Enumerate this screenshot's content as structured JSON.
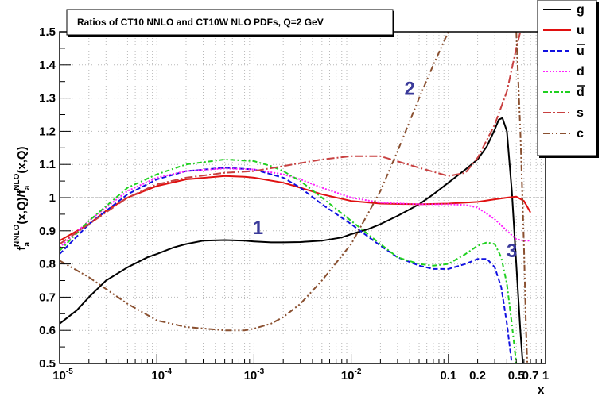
{
  "chart_data": {
    "type": "line",
    "title": "Ratios of CT10 NNLO and CT10W NLO PDFs, Q=2 GeV",
    "xlabel": "x",
    "ylabel_parts": {
      "f": "f",
      "a1": "a",
      "nnlo": "NNLO",
      "mid": "(x,Q)/f",
      "a2": "a",
      "nlo": "NLO",
      "end": "(x,Q)"
    },
    "xscale": "log",
    "xlim": [
      1e-05,
      1
    ],
    "ylim": [
      0.5,
      1.5
    ],
    "grid": true,
    "legend_position": "top-right",
    "x_ticks": [
      {
        "value": 1e-05,
        "base": "10",
        "exp": "-5"
      },
      {
        "value": 0.0001,
        "base": "10",
        "exp": "-4"
      },
      {
        "value": 0.001,
        "base": "10",
        "exp": "-3"
      },
      {
        "value": 0.01,
        "base": "10",
        "exp": "-2"
      },
      {
        "value": 0.1,
        "base": "0.1",
        "exp": ""
      },
      {
        "value": 0.2,
        "base": "0.2",
        "exp": ""
      },
      {
        "value": 0.5,
        "base": "0.5",
        "exp": ""
      },
      {
        "value": 0.7,
        "base": "0.7",
        "exp": ""
      },
      {
        "value": 1,
        "base": "1",
        "exp": ""
      }
    ],
    "y_ticks": [
      "0.5",
      "0.6",
      "0.7",
      "0.8",
      "0.9",
      "1",
      "1.1",
      "1.2",
      "1.3",
      "1.4",
      "1.5"
    ],
    "reference_line": 1,
    "annotations": [
      {
        "text": "1",
        "x": 0.0011,
        "y": 0.89,
        "color": "#3a3a9a"
      },
      {
        "text": "2",
        "x": 0.04,
        "y": 1.31,
        "color": "#3a3a9a"
      },
      {
        "text": "3",
        "x": 0.45,
        "y": 0.82,
        "color": "#3a3a9a"
      }
    ],
    "series": [
      {
        "name": "g",
        "color": "#000000",
        "dash": "",
        "x": [
          1e-05,
          1.5e-05,
          2e-05,
          3e-05,
          5e-05,
          8e-05,
          0.0001,
          0.00015,
          0.0002,
          0.0003,
          0.0005,
          0.0008,
          0.001,
          0.0015,
          0.002,
          0.003,
          0.005,
          0.008,
          0.01,
          0.015,
          0.02,
          0.03,
          0.05,
          0.07,
          0.1,
          0.15,
          0.2,
          0.25,
          0.3,
          0.33,
          0.36,
          0.4,
          0.45,
          0.5,
          0.55,
          0.6
        ],
        "y": [
          0.62,
          0.66,
          0.7,
          0.75,
          0.79,
          0.82,
          0.83,
          0.85,
          0.86,
          0.87,
          0.872,
          0.87,
          0.868,
          0.865,
          0.865,
          0.866,
          0.87,
          0.88,
          0.89,
          0.905,
          0.92,
          0.945,
          0.98,
          1.01,
          1.045,
          1.085,
          1.115,
          1.155,
          1.205,
          1.235,
          1.24,
          1.2,
          1.02,
          0.8,
          0.6,
          0.45
        ]
      },
      {
        "name": "u",
        "color": "#e01010",
        "dash": "",
        "x": [
          1e-05,
          2e-05,
          3e-05,
          5e-05,
          0.0001,
          0.0002,
          0.0005,
          0.0008,
          0.001,
          0.002,
          0.003,
          0.005,
          0.01,
          0.02,
          0.05,
          0.1,
          0.2,
          0.3,
          0.4,
          0.5,
          0.6,
          0.7
        ],
        "y": [
          0.87,
          0.92,
          0.96,
          1.0,
          1.035,
          1.055,
          1.065,
          1.063,
          1.06,
          1.045,
          1.03,
          1.01,
          0.99,
          0.982,
          0.98,
          0.982,
          0.987,
          0.995,
          1.0,
          1.003,
          0.99,
          0.955
        ]
      },
      {
        "name": "ubar",
        "color": "#1010e0",
        "dash": "6,3",
        "x": [
          1e-05,
          2e-05,
          5e-05,
          0.0001,
          0.0002,
          0.0005,
          0.001,
          0.002,
          0.003,
          0.005,
          0.01,
          0.02,
          0.03,
          0.05,
          0.07,
          0.1,
          0.15,
          0.2,
          0.25,
          0.3,
          0.35,
          0.4,
          0.45
        ],
        "y": [
          0.83,
          0.92,
          1.01,
          1.055,
          1.08,
          1.09,
          1.085,
          1.06,
          1.03,
          0.98,
          0.92,
          0.855,
          0.82,
          0.795,
          0.785,
          0.785,
          0.8,
          0.815,
          0.815,
          0.79,
          0.73,
          0.62,
          0.5
        ]
      },
      {
        "name": "d",
        "color": "#ff20ff",
        "dash": "2,2",
        "x": [
          1e-05,
          2e-05,
          5e-05,
          0.0001,
          0.0002,
          0.0005,
          0.001,
          0.002,
          0.003,
          0.005,
          0.01,
          0.02,
          0.05,
          0.1,
          0.15,
          0.2,
          0.3,
          0.4,
          0.5,
          0.6,
          0.7
        ],
        "y": [
          0.85,
          0.93,
          1.02,
          1.06,
          1.08,
          1.088,
          1.085,
          1.07,
          1.055,
          1.03,
          1.0,
          0.985,
          0.98,
          0.98,
          0.978,
          0.97,
          0.935,
          0.9,
          0.875,
          0.87,
          0.87
        ]
      },
      {
        "name": "dbar",
        "color": "#20d020",
        "dash": "6,3,2,3",
        "x": [
          1e-05,
          2e-05,
          5e-05,
          0.0001,
          0.0002,
          0.0005,
          0.001,
          0.0015,
          0.002,
          0.003,
          0.005,
          0.01,
          0.02,
          0.03,
          0.05,
          0.07,
          0.1,
          0.15,
          0.2,
          0.25,
          0.3,
          0.35,
          0.4,
          0.45,
          0.5
        ],
        "y": [
          0.84,
          0.93,
          1.03,
          1.07,
          1.1,
          1.115,
          1.11,
          1.095,
          1.08,
          1.05,
          1.0,
          0.93,
          0.86,
          0.82,
          0.8,
          0.795,
          0.8,
          0.83,
          0.855,
          0.865,
          0.86,
          0.82,
          0.74,
          0.62,
          0.5
        ]
      },
      {
        "name": "s",
        "color": "#c84040",
        "dash": "10,3,2,3",
        "x": [
          1e-05,
          2e-05,
          5e-05,
          0.0001,
          0.0002,
          0.0005,
          0.001,
          0.002,
          0.005,
          0.01,
          0.02,
          0.05,
          0.1,
          0.15,
          0.2,
          0.3,
          0.4,
          0.5,
          0.55
        ],
        "y": [
          0.86,
          0.92,
          1.0,
          1.04,
          1.06,
          1.075,
          1.08,
          1.095,
          1.115,
          1.125,
          1.125,
          1.09,
          1.065,
          1.075,
          1.12,
          1.22,
          1.32,
          1.45,
          1.5
        ]
      },
      {
        "name": "c",
        "color": "#8a5030",
        "dash": "8,3,2,3,2,3",
        "x": [
          1e-05,
          2e-05,
          5e-05,
          0.0001,
          0.0002,
          0.0005,
          0.0008,
          0.001,
          0.0015,
          0.002,
          0.003,
          0.005,
          0.01,
          0.02,
          0.03,
          0.05,
          0.07,
          0.1
        ],
        "y": [
          0.81,
          0.76,
          0.68,
          0.63,
          0.61,
          0.6,
          0.6,
          0.605,
          0.62,
          0.64,
          0.68,
          0.75,
          0.86,
          1.02,
          1.14,
          1.3,
          1.4,
          1.5
        ]
      },
      {
        "name": "c_tail",
        "color": "#8a5030",
        "dash": "8,3,2,3,2,3",
        "x": [
          0.5,
          0.55,
          0.6,
          0.63,
          0.65
        ],
        "y": [
          1.5,
          1.2,
          0.85,
          0.6,
          0.5
        ]
      }
    ],
    "legend": [
      {
        "key": "g",
        "label": "g",
        "color": "#000000",
        "dash": ""
      },
      {
        "key": "u",
        "label": "u",
        "color": "#e01010",
        "dash": ""
      },
      {
        "key": "ubar",
        "label": "u",
        "bar": true,
        "color": "#1010e0",
        "dash": "6,3"
      },
      {
        "key": "d",
        "label": "d",
        "color": "#ff20ff",
        "dash": "2,2"
      },
      {
        "key": "dbar",
        "label": "d",
        "bar": true,
        "color": "#20d020",
        "dash": "6,3,2,3"
      },
      {
        "key": "s",
        "label": "s",
        "color": "#c84040",
        "dash": "10,3,2,3"
      },
      {
        "key": "c",
        "label": "c",
        "color": "#8a5030",
        "dash": "8,3,2,3,2,3"
      }
    ]
  }
}
